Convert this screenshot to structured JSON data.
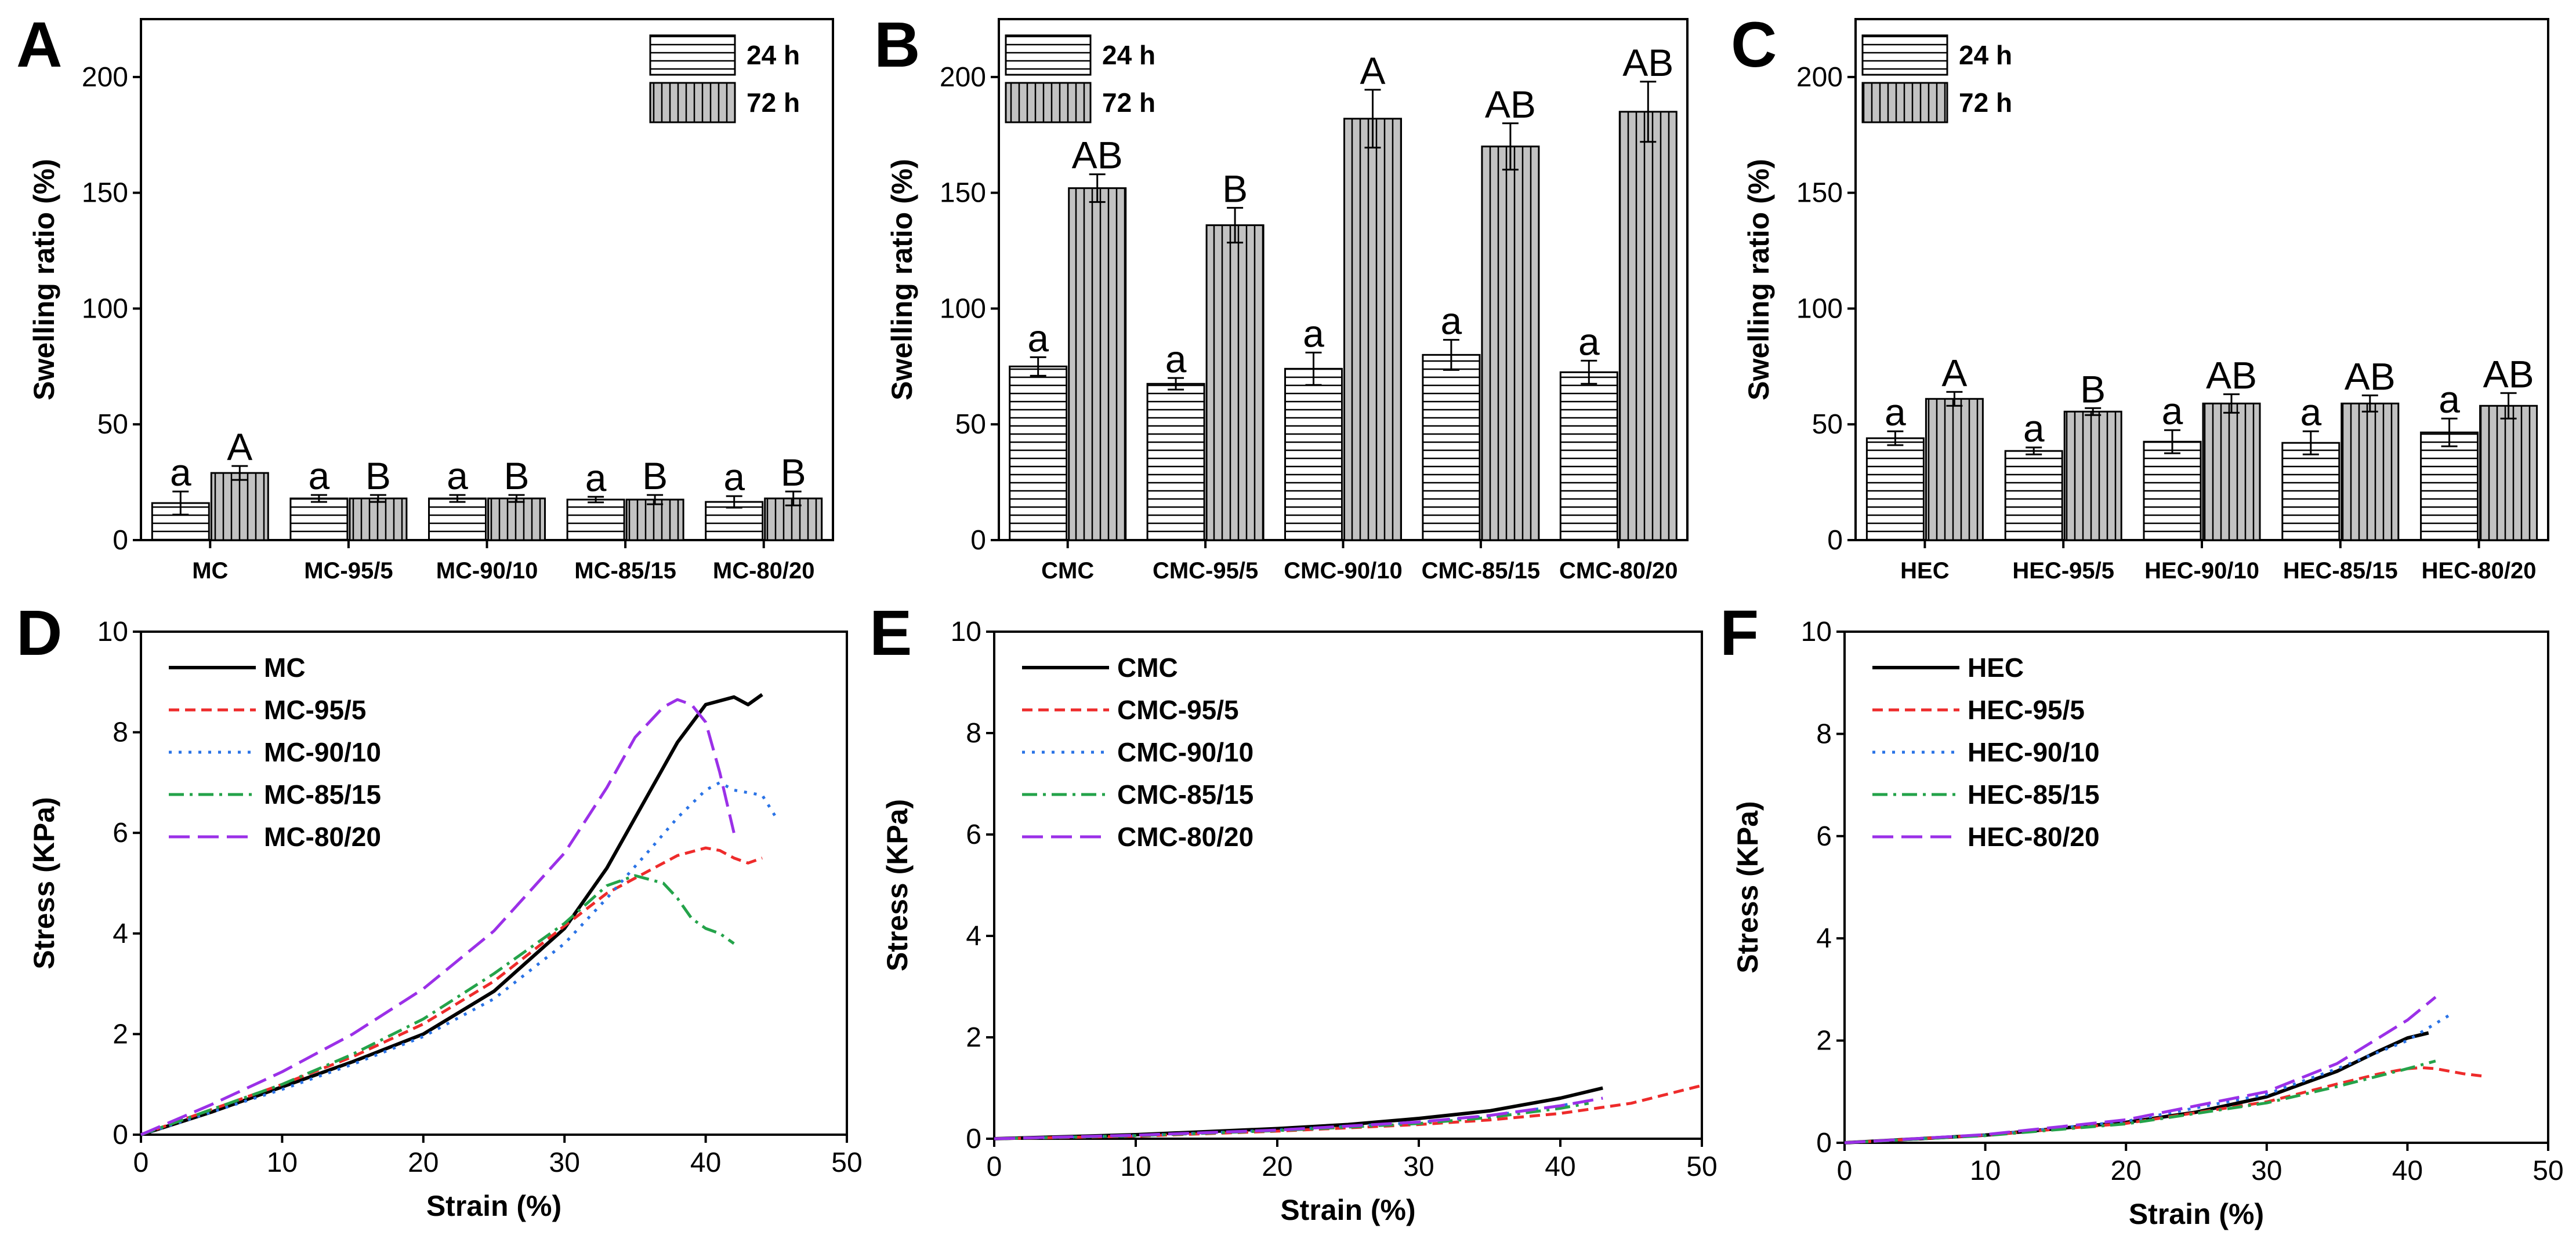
{
  "colors": {
    "bar_24h_fill": "#ffffff",
    "bar_72h_fill": "#c2c2c2",
    "axis": "#000000",
    "MC": "#000000",
    "95_5": "#ee2b2b",
    "90_10": "#2a73e6",
    "85_15": "#24a34a",
    "80_20": "#9b30e8"
  },
  "chart_data": [
    {
      "panel": "A",
      "type": "bar",
      "ylabel": "Swelling ratio (%)",
      "ylim": [
        0,
        225
      ],
      "yticks": [
        "0",
        "50",
        "100",
        "150",
        "200"
      ],
      "legend": [
        "24 h",
        "72 h"
      ],
      "legend_position": "top-right",
      "categories": [
        "MC",
        "MC-95/5",
        "MC-90/10",
        "MC-85/15",
        "MC-80/20"
      ],
      "series": [
        {
          "name": "24 h",
          "values": [
            16,
            18,
            18,
            17.5,
            16.5
          ],
          "errors": [
            5,
            1.5,
            1.5,
            1.2,
            2.5
          ],
          "labels": [
            "a",
            "a",
            "a",
            "a",
            "a"
          ]
        },
        {
          "name": "72 h",
          "values": [
            29,
            18,
            18,
            17.5,
            18
          ],
          "errors": [
            3,
            1.5,
            1.5,
            2,
            3
          ],
          "labels": [
            "A",
            "B",
            "B",
            "B",
            "B"
          ]
        }
      ]
    },
    {
      "panel": "B",
      "type": "bar",
      "ylabel": "Swelling ratio (%)",
      "ylim": [
        0,
        225
      ],
      "yticks": [
        "0",
        "50",
        "100",
        "150",
        "200"
      ],
      "legend": [
        "24 h",
        "72 h"
      ],
      "legend_position": "top-left",
      "categories": [
        "CMC",
        "CMC-95/5",
        "CMC-90/10",
        "CMC-85/15",
        "CMC-80/20"
      ],
      "series": [
        {
          "name": "24 h",
          "values": [
            75,
            67.5,
            74,
            80,
            72.5
          ],
          "errors": [
            4,
            2.5,
            7,
            6.5,
            5
          ],
          "labels": [
            "a",
            "a",
            "a",
            "a",
            "a"
          ]
        },
        {
          "name": "72 h",
          "values": [
            152,
            136,
            182,
            170,
            185
          ],
          "errors": [
            6,
            7.5,
            12.5,
            10,
            13
          ],
          "labels": [
            "AB",
            "B",
            "A",
            "AB",
            "AB"
          ]
        }
      ]
    },
    {
      "panel": "C",
      "type": "bar",
      "ylabel": "Swelling ratio (%)",
      "ylim": [
        0,
        225
      ],
      "yticks": [
        "0",
        "50",
        "100",
        "150",
        "200"
      ],
      "legend": [
        "24 h",
        "72 h"
      ],
      "legend_position": "top-left",
      "categories": [
        "HEC",
        "HEC-95/5",
        "HEC-90/10",
        "HEC-85/15",
        "HEC-80/20"
      ],
      "series": [
        {
          "name": "24 h",
          "values": [
            44,
            38.5,
            42.5,
            42,
            46.5
          ],
          "errors": [
            3,
            1.5,
            5,
            5,
            6
          ],
          "labels": [
            "a",
            "a",
            "a",
            "a",
            "a"
          ]
        },
        {
          "name": "72 h",
          "values": [
            61,
            55.5,
            59,
            59,
            58
          ],
          "errors": [
            3,
            1.5,
            4,
            3.5,
            5.5
          ],
          "labels": [
            "A",
            "B",
            "AB",
            "AB",
            "AB"
          ]
        }
      ]
    },
    {
      "panel": "D",
      "type": "line",
      "xlabel": "Strain (%)",
      "ylabel": "Stress (KPa)",
      "xlim": [
        0,
        50
      ],
      "ylim": [
        0,
        10
      ],
      "xticks": [
        "0",
        "10",
        "20",
        "30",
        "40",
        "50"
      ],
      "yticks": [
        "0",
        "2",
        "4",
        "6",
        "8",
        "10"
      ],
      "legend_position": "top-left",
      "series": [
        {
          "name": "MC",
          "key": "MC",
          "style": "solid",
          "x": [
            0,
            5,
            10,
            15,
            20,
            25,
            30,
            33,
            36,
            38,
            40,
            42,
            43,
            44
          ],
          "y": [
            0,
            0.45,
            0.95,
            1.45,
            2.0,
            2.85,
            4.1,
            5.3,
            6.8,
            7.8,
            8.55,
            8.7,
            8.55,
            8.75
          ]
        },
        {
          "name": "MC-95/5",
          "key": "95_5",
          "style": "dashed",
          "x": [
            0,
            5,
            10,
            15,
            20,
            25,
            30,
            33,
            36,
            38,
            40,
            41,
            42,
            43,
            44
          ],
          "y": [
            0,
            0.5,
            1.0,
            1.55,
            2.2,
            3.05,
            4.15,
            4.8,
            5.25,
            5.55,
            5.7,
            5.65,
            5.5,
            5.4,
            5.5
          ]
        },
        {
          "name": "MC-90/10",
          "key": "90_10",
          "style": "dotted",
          "x": [
            0,
            5,
            10,
            15,
            20,
            25,
            30,
            33,
            36,
            38,
            40,
            41,
            42,
            43,
            44,
            45
          ],
          "y": [
            0,
            0.45,
            0.9,
            1.4,
            1.95,
            2.7,
            3.8,
            4.7,
            5.65,
            6.3,
            6.85,
            7.0,
            6.85,
            6.8,
            6.75,
            6.3
          ]
        },
        {
          "name": "MC-85/15",
          "key": "85_15",
          "style": "dashdot",
          "x": [
            0,
            5,
            10,
            15,
            20,
            25,
            30,
            33,
            35,
            37,
            38,
            39,
            40,
            41,
            42
          ],
          "y": [
            0,
            0.5,
            1.0,
            1.6,
            2.3,
            3.2,
            4.2,
            4.95,
            5.15,
            5.0,
            4.7,
            4.3,
            4.1,
            4.0,
            3.8
          ]
        },
        {
          "name": "MC-80/20",
          "key": "80_20",
          "style": "longdash",
          "x": [
            0,
            5,
            10,
            15,
            20,
            25,
            30,
            33,
            35,
            37,
            38,
            39,
            40,
            41,
            42
          ],
          "y": [
            0,
            0.6,
            1.25,
            2.0,
            2.9,
            4.05,
            5.6,
            6.9,
            7.9,
            8.5,
            8.65,
            8.55,
            8.2,
            7.2,
            6.0
          ]
        }
      ]
    },
    {
      "panel": "E",
      "type": "line",
      "xlabel": "Strain (%)",
      "ylabel": "Stress (KPa)",
      "xlim": [
        0,
        50
      ],
      "ylim": [
        0,
        10
      ],
      "xticks": [
        "0",
        "10",
        "20",
        "30",
        "40",
        "50"
      ],
      "yticks": [
        "0",
        "2",
        "4",
        "6",
        "8",
        "10"
      ],
      "legend_position": "top-left",
      "series": [
        {
          "name": "CMC",
          "key": "MC",
          "style": "solid",
          "x": [
            0,
            10,
            20,
            25,
            30,
            35,
            40,
            43
          ],
          "y": [
            0,
            0.08,
            0.2,
            0.28,
            0.4,
            0.55,
            0.8,
            1.0
          ]
        },
        {
          "name": "CMC-95/5",
          "key": "95_5",
          "style": "dashed",
          "x": [
            0,
            10,
            20,
            30,
            35,
            40,
            45,
            50
          ],
          "y": [
            0,
            0.05,
            0.15,
            0.28,
            0.37,
            0.5,
            0.7,
            1.05
          ]
        },
        {
          "name": "CMC-90/10",
          "key": "90_10",
          "style": "dotted",
          "x": [
            0,
            10,
            20,
            30,
            35,
            40,
            42
          ],
          "y": [
            0,
            0.06,
            0.17,
            0.32,
            0.45,
            0.65,
            0.75
          ]
        },
        {
          "name": "CMC-85/15",
          "key": "85_15",
          "style": "dashdot",
          "x": [
            0,
            10,
            20,
            30,
            35,
            40,
            42
          ],
          "y": [
            0,
            0.06,
            0.16,
            0.3,
            0.42,
            0.6,
            0.7
          ]
        },
        {
          "name": "CMC-80/20",
          "key": "80_20",
          "style": "longdash",
          "x": [
            0,
            10,
            20,
            30,
            35,
            40,
            43
          ],
          "y": [
            0,
            0.07,
            0.17,
            0.33,
            0.46,
            0.65,
            0.8
          ]
        }
      ]
    },
    {
      "panel": "F",
      "type": "line",
      "xlabel": "Strain (%)",
      "ylabel": "Stress (KPa)",
      "xlim": [
        0,
        50
      ],
      "ylim": [
        0,
        10
      ],
      "xticks": [
        "0",
        "10",
        "20",
        "30",
        "40",
        "50"
      ],
      "yticks": [
        "0",
        "2",
        "4",
        "6",
        "8",
        "10"
      ],
      "legend_position": "top-left",
      "series": [
        {
          "name": "HEC",
          "key": "MC",
          "style": "solid",
          "x": [
            0,
            10,
            20,
            25,
            30,
            35,
            38,
            40,
            41.5
          ],
          "y": [
            0,
            0.15,
            0.4,
            0.6,
            0.9,
            1.4,
            1.8,
            2.05,
            2.15
          ]
        },
        {
          "name": "HEC-95/5",
          "key": "95_5",
          "style": "dashed",
          "x": [
            0,
            10,
            20,
            30,
            35,
            38,
            40,
            41,
            42,
            43,
            44,
            45.5
          ],
          "y": [
            0,
            0.15,
            0.38,
            0.8,
            1.15,
            1.35,
            1.45,
            1.47,
            1.45,
            1.4,
            1.35,
            1.3
          ]
        },
        {
          "name": "HEC-90/10",
          "key": "90_10",
          "style": "dotted",
          "x": [
            0,
            10,
            20,
            30,
            35,
            40,
            43
          ],
          "y": [
            0,
            0.15,
            0.42,
            0.95,
            1.45,
            2.0,
            2.5
          ]
        },
        {
          "name": "HEC-85/15",
          "key": "85_15",
          "style": "dashdot",
          "x": [
            0,
            10,
            20,
            30,
            35,
            40,
            42
          ],
          "y": [
            0,
            0.14,
            0.37,
            0.78,
            1.1,
            1.45,
            1.6
          ]
        },
        {
          "name": "HEC-80/20",
          "key": "80_20",
          "style": "longdash",
          "x": [
            0,
            10,
            20,
            30,
            35,
            40,
            42
          ],
          "y": [
            0,
            0.16,
            0.45,
            1.0,
            1.55,
            2.4,
            2.85
          ]
        }
      ]
    }
  ]
}
